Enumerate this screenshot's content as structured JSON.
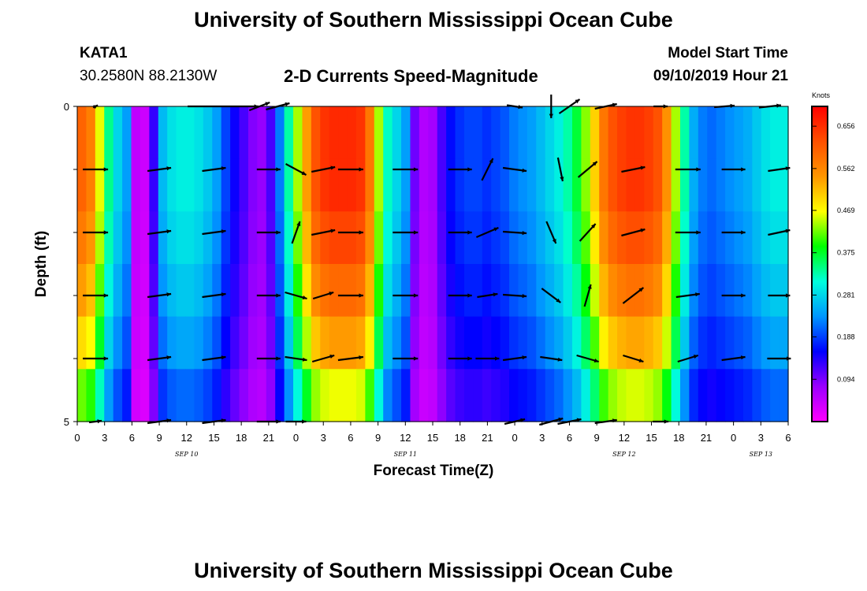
{
  "header": {
    "title": "University of Southern Mississippi Ocean Cube",
    "station": "KATA1",
    "coords": "30.2580N 88.2130W",
    "subtitle": "2-D Currents Speed-Magnitude",
    "model_start_label": "Model Start Time",
    "model_start_value": "09/10/2019 Hour 21"
  },
  "footer": {
    "title": "University of Southern Mississippi Ocean Cube"
  },
  "colors": {
    "arrow": "#000000",
    "colormap": [
      "#ff00ff",
      "#9b00ff",
      "#0000ff",
      "#0096ff",
      "#00ffdc",
      "#00ff00",
      "#ffff00",
      "#ff9600",
      "#ff5000",
      "#ff0000"
    ]
  },
  "chart_data": {
    "type": "heatmap",
    "title": "2-D Currents Speed-Magnitude",
    "xlabel": "Forecast Time(Z)",
    "ylabel": "Depth (ft)",
    "colorbar_label": "Knots",
    "colorbar_ticks": [
      "0.656",
      "0.562",
      "0.469",
      "0.375",
      "0.281",
      "0.188",
      "0.094"
    ],
    "colorbar_range": [
      0.0,
      0.7
    ],
    "x_ticks": [
      "0",
      "3",
      "6",
      "9",
      "12",
      "15",
      "18",
      "21",
      "0",
      "3",
      "6",
      "9",
      "12",
      "15",
      "18",
      "21",
      "0",
      "3",
      "6",
      "9",
      "12",
      "15",
      "18",
      "21",
      "0",
      "3",
      "6"
    ],
    "date_labels": [
      {
        "label": "SEP 10",
        "at_tick": 4
      },
      {
        "label": "SEP 11",
        "at_tick": 12
      },
      {
        "label": "SEP 12",
        "at_tick": 20
      },
      {
        "label": "SEP 13",
        "at_tick": 25
      }
    ],
    "y_tick_labels": [
      "0",
      "5"
    ],
    "depth_range_ft": [
      0,
      5
    ],
    "depth_levels": 6,
    "time_hours_range": [
      0,
      78
    ],
    "speed_profile_by_hour": [
      [
        0,
        0.6
      ],
      [
        1,
        0.57
      ],
      [
        2,
        0.46
      ],
      [
        3,
        0.34
      ],
      [
        4,
        0.28
      ],
      [
        5,
        0.24
      ],
      [
        6,
        0.05
      ],
      [
        7,
        0.04
      ],
      [
        8,
        0.13
      ],
      [
        9,
        0.26
      ],
      [
        10,
        0.29
      ],
      [
        11,
        0.3
      ],
      [
        12,
        0.3
      ],
      [
        13,
        0.29
      ],
      [
        14,
        0.27
      ],
      [
        15,
        0.24
      ],
      [
        16,
        0.19
      ],
      [
        17,
        0.15
      ],
      [
        18,
        0.12
      ],
      [
        19,
        0.09
      ],
      [
        20,
        0.08
      ],
      [
        21,
        0.12
      ],
      [
        22,
        0.22
      ],
      [
        23,
        0.33
      ],
      [
        24,
        0.44
      ],
      [
        25,
        0.54
      ],
      [
        26,
        0.62
      ],
      [
        27,
        0.65
      ],
      [
        28,
        0.66
      ],
      [
        29,
        0.66
      ],
      [
        30,
        0.66
      ],
      [
        31,
        0.65
      ],
      [
        32,
        0.58
      ],
      [
        33,
        0.44
      ],
      [
        34,
        0.32
      ],
      [
        35,
        0.28
      ],
      [
        36,
        0.24
      ],
      [
        37,
        0.1
      ],
      [
        38,
        0.06
      ],
      [
        39,
        0.07
      ],
      [
        40,
        0.12
      ],
      [
        41,
        0.16
      ],
      [
        42,
        0.18
      ],
      [
        43,
        0.19
      ],
      [
        44,
        0.19
      ],
      [
        45,
        0.18
      ],
      [
        46,
        0.19
      ],
      [
        47,
        0.2
      ],
      [
        48,
        0.22
      ],
      [
        49,
        0.23
      ],
      [
        50,
        0.24
      ],
      [
        51,
        0.26
      ],
      [
        52,
        0.28
      ],
      [
        53,
        0.3
      ],
      [
        54,
        0.33
      ],
      [
        55,
        0.37
      ],
      [
        56,
        0.43
      ],
      [
        57,
        0.5
      ],
      [
        58,
        0.58
      ],
      [
        59,
        0.62
      ],
      [
        60,
        0.64
      ],
      [
        61,
        0.65
      ],
      [
        62,
        0.65
      ],
      [
        63,
        0.64
      ],
      [
        64,
        0.62
      ],
      [
        65,
        0.55
      ],
      [
        66,
        0.44
      ],
      [
        67,
        0.33
      ],
      [
        68,
        0.25
      ],
      [
        69,
        0.22
      ],
      [
        70,
        0.21
      ],
      [
        71,
        0.22
      ],
      [
        72,
        0.23
      ],
      [
        73,
        0.24
      ],
      [
        74,
        0.25
      ],
      [
        75,
        0.27
      ],
      [
        76,
        0.29
      ],
      [
        77,
        0.3
      ],
      [
        78,
        0.3
      ]
    ],
    "depth_scale": [
      1.0,
      1.0,
      0.96,
      0.9,
      0.82,
      0.7
    ],
    "vectors": [
      {
        "depth": 0,
        "points": [
          [
            2,
            0.15,
            6,
            -3
          ],
          [
            16,
            0.12,
            90,
            0
          ],
          [
            20,
            0.2,
            26,
            -10
          ],
          [
            22,
            0.3,
            30,
            -8
          ],
          [
            34,
            0.15,
            0,
            0
          ],
          [
            48,
            0.25,
            20,
            3
          ],
          [
            52,
            0.2,
            0,
            30
          ],
          [
            54,
            0.2,
            26,
            -18
          ],
          [
            58,
            0.2,
            28,
            -6
          ],
          [
            64,
            0.2,
            18,
            0
          ],
          [
            71,
            0.25,
            26,
            -2
          ],
          [
            76,
            0.15,
            28,
            -3
          ]
        ]
      },
      {
        "depth": 1,
        "points": [
          [
            2,
            0.6,
            32,
            0
          ],
          [
            9,
            0.3,
            30,
            -4
          ],
          [
            15,
            0.3,
            30,
            -4
          ],
          [
            21,
            0.3,
            30,
            0
          ],
          [
            24,
            0.3,
            26,
            14
          ],
          [
            27,
            0.3,
            30,
            -6
          ],
          [
            30,
            0.6,
            32,
            0
          ],
          [
            36,
            0.6,
            32,
            0
          ],
          [
            42,
            0.6,
            30,
            0
          ],
          [
            45,
            0.1,
            14,
            -28
          ],
          [
            48,
            0.2,
            30,
            4
          ],
          [
            53,
            0.2,
            6,
            30
          ],
          [
            56,
            0.3,
            24,
            -20
          ],
          [
            61,
            0.3,
            30,
            -6
          ],
          [
            67,
            0.6,
            32,
            0
          ],
          [
            72,
            0.6,
            30,
            0
          ],
          [
            77,
            0.6,
            28,
            -4
          ]
        ]
      },
      {
        "depth": 2,
        "points": [
          [
            2,
            0.6,
            32,
            0
          ],
          [
            9,
            0.3,
            30,
            -4
          ],
          [
            15,
            0.3,
            30,
            -4
          ],
          [
            21,
            0.3,
            30,
            0
          ],
          [
            24,
            0.3,
            10,
            -28
          ],
          [
            27,
            0.3,
            30,
            -6
          ],
          [
            30,
            0.6,
            32,
            0
          ],
          [
            36,
            0.6,
            32,
            0
          ],
          [
            42,
            0.6,
            30,
            0
          ],
          [
            45,
            0.1,
            28,
            -12
          ],
          [
            48,
            0.2,
            30,
            2
          ],
          [
            52,
            0.2,
            12,
            28
          ],
          [
            56,
            0.3,
            20,
            -22
          ],
          [
            61,
            0.3,
            30,
            -8
          ],
          [
            67,
            0.6,
            32,
            0
          ],
          [
            72,
            0.6,
            30,
            0
          ],
          [
            77,
            0.6,
            28,
            -6
          ]
        ]
      },
      {
        "depth": 3,
        "points": [
          [
            2,
            0.6,
            32,
            0
          ],
          [
            9,
            0.3,
            30,
            -4
          ],
          [
            15,
            0.3,
            30,
            -4
          ],
          [
            21,
            0.3,
            30,
            0
          ],
          [
            24,
            0.25,
            28,
            8
          ],
          [
            27,
            0.3,
            26,
            -8
          ],
          [
            30,
            0.6,
            32,
            0
          ],
          [
            36,
            0.6,
            32,
            0
          ],
          [
            42,
            0.6,
            30,
            0
          ],
          [
            45,
            0.1,
            26,
            -4
          ],
          [
            48,
            0.2,
            30,
            2
          ],
          [
            52,
            0.2,
            24,
            18
          ],
          [
            56,
            0.3,
            8,
            -28
          ],
          [
            61,
            0.3,
            26,
            -20
          ],
          [
            67,
            0.6,
            30,
            -4
          ],
          [
            72,
            0.6,
            30,
            0
          ],
          [
            77,
            0.6,
            28,
            0
          ]
        ]
      },
      {
        "depth": 4,
        "points": [
          [
            2,
            0.6,
            32,
            0
          ],
          [
            9,
            0.3,
            30,
            -4
          ],
          [
            15,
            0.3,
            30,
            -4
          ],
          [
            21,
            0.3,
            30,
            0
          ],
          [
            24,
            0.25,
            28,
            4
          ],
          [
            27,
            0.3,
            28,
            -8
          ],
          [
            30,
            0.6,
            32,
            -4
          ],
          [
            36,
            0.6,
            32,
            0
          ],
          [
            42,
            0.6,
            30,
            0
          ],
          [
            45,
            0.1,
            30,
            0
          ],
          [
            48,
            0.2,
            30,
            -4
          ],
          [
            52,
            0.2,
            28,
            4
          ],
          [
            56,
            0.3,
            28,
            8
          ],
          [
            61,
            0.3,
            26,
            8
          ],
          [
            67,
            0.6,
            26,
            -8
          ],
          [
            72,
            0.6,
            30,
            -4
          ],
          [
            77,
            0.6,
            30,
            0
          ]
        ]
      },
      {
        "depth": 5,
        "points": [
          [
            2,
            0.15,
            16,
            -2
          ],
          [
            9,
            0.3,
            30,
            -4
          ],
          [
            15,
            0.3,
            30,
            -4
          ],
          [
            21,
            0.3,
            30,
            0
          ],
          [
            24,
            0.15,
            26,
            0
          ],
          [
            48,
            0.2,
            26,
            -6
          ],
          [
            52,
            0.2,
            30,
            -8
          ],
          [
            54,
            0.2,
            30,
            -6
          ],
          [
            58,
            0.2,
            28,
            -4
          ],
          [
            64,
            0.2,
            20,
            0
          ]
        ]
      }
    ]
  }
}
